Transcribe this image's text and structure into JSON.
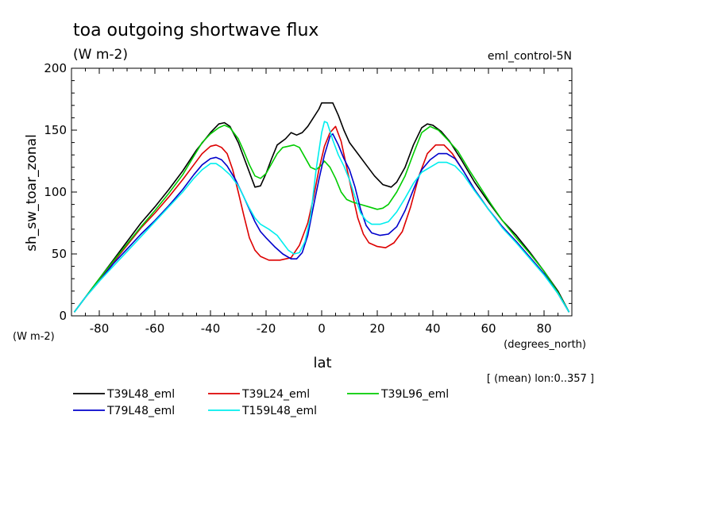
{
  "chart_data": {
    "type": "line",
    "title": "toa outgoing shortwave flux",
    "subtitle": "(W m-2)",
    "experiment_label": "eml_control-5N",
    "ylabel": "sh_sw_toar_zonal",
    "y_unit_label": "(W m-2)",
    "xlabel": "lat",
    "x_unit_label": "(degrees_north)",
    "note": "[ (mean) lon:0..357 ]",
    "xlim": [
      -90,
      90
    ],
    "ylim": [
      0,
      200
    ],
    "x_ticks": [
      -80,
      -60,
      -40,
      -20,
      0,
      20,
      40,
      60,
      80
    ],
    "x_tick_labels": [
      "-80",
      "-60",
      "-40",
      "-20",
      "0",
      "20",
      "40",
      "60",
      "80"
    ],
    "y_ticks": [
      0,
      50,
      100,
      150,
      200
    ],
    "y_tick_labels": [
      "0",
      "50",
      "100",
      "150",
      "200"
    ],
    "grid": false,
    "legend_position": "bottom",
    "series": [
      {
        "name": "T39L48_eml",
        "color": "#000000",
        "points": [
          [
            -89,
            3
          ],
          [
            -85,
            15
          ],
          [
            -80,
            30
          ],
          [
            -75,
            45
          ],
          [
            -70,
            60
          ],
          [
            -65,
            75
          ],
          [
            -60,
            88
          ],
          [
            -55,
            102
          ],
          [
            -50,
            117
          ],
          [
            -45,
            134
          ],
          [
            -40,
            148
          ],
          [
            -37,
            155
          ],
          [
            -35,
            156
          ],
          [
            -33,
            153
          ],
          [
            -30,
            140
          ],
          [
            -27,
            122
          ],
          [
            -24,
            104
          ],
          [
            -22,
            105
          ],
          [
            -20,
            115
          ],
          [
            -18,
            127
          ],
          [
            -16,
            138
          ],
          [
            -13,
            143
          ],
          [
            -11,
            148
          ],
          [
            -9,
            146
          ],
          [
            -7,
            148
          ],
          [
            -5,
            153
          ],
          [
            -3,
            160
          ],
          [
            -1,
            167
          ],
          [
            0,
            172
          ],
          [
            2,
            172
          ],
          [
            4,
            172
          ],
          [
            6,
            162
          ],
          [
            8,
            150
          ],
          [
            10,
            140
          ],
          [
            13,
            131
          ],
          [
            16,
            122
          ],
          [
            19,
            113
          ],
          [
            22,
            106
          ],
          [
            25,
            104
          ],
          [
            27,
            108
          ],
          [
            30,
            120
          ],
          [
            33,
            138
          ],
          [
            36,
            152
          ],
          [
            38,
            155
          ],
          [
            40,
            154
          ],
          [
            43,
            149
          ],
          [
            46,
            141
          ],
          [
            50,
            127
          ],
          [
            55,
            108
          ],
          [
            60,
            92
          ],
          [
            65,
            77
          ],
          [
            70,
            65
          ],
          [
            75,
            51
          ],
          [
            80,
            36
          ],
          [
            85,
            20
          ],
          [
            89,
            3
          ]
        ]
      },
      {
        "name": "T39L24_eml",
        "color": "#dd0000",
        "points": [
          [
            -89,
            3
          ],
          [
            -85,
            15
          ],
          [
            -80,
            29
          ],
          [
            -75,
            43
          ],
          [
            -70,
            57
          ],
          [
            -65,
            71
          ],
          [
            -60,
            83
          ],
          [
            -55,
            96
          ],
          [
            -50,
            110
          ],
          [
            -46,
            122
          ],
          [
            -43,
            131
          ],
          [
            -40,
            137
          ],
          [
            -38,
            138
          ],
          [
            -36,
            136
          ],
          [
            -34,
            131
          ],
          [
            -32,
            118
          ],
          [
            -30,
            100
          ],
          [
            -28,
            81
          ],
          [
            -26,
            63
          ],
          [
            -24,
            53
          ],
          [
            -22,
            48
          ],
          [
            -19,
            45
          ],
          [
            -15,
            45
          ],
          [
            -11,
            47
          ],
          [
            -8,
            57
          ],
          [
            -5,
            75
          ],
          [
            -3,
            95
          ],
          [
            -1,
            118
          ],
          [
            1,
            137
          ],
          [
            3,
            148
          ],
          [
            5,
            153
          ],
          [
            7,
            141
          ],
          [
            9,
            120
          ],
          [
            11,
            99
          ],
          [
            13,
            79
          ],
          [
            15,
            66
          ],
          [
            17,
            59
          ],
          [
            20,
            56
          ],
          [
            23,
            55
          ],
          [
            26,
            59
          ],
          [
            29,
            68
          ],
          [
            32,
            88
          ],
          [
            35,
            113
          ],
          [
            38,
            131
          ],
          [
            41,
            138
          ],
          [
            44,
            138
          ],
          [
            47,
            131
          ],
          [
            51,
            117
          ],
          [
            55,
            102
          ],
          [
            60,
            86
          ],
          [
            65,
            72
          ],
          [
            70,
            60
          ],
          [
            75,
            47
          ],
          [
            80,
            34
          ],
          [
            85,
            18
          ],
          [
            89,
            3
          ]
        ]
      },
      {
        "name": "T39L96_eml",
        "color": "#00cc00",
        "points": [
          [
            -89,
            3
          ],
          [
            -85,
            15
          ],
          [
            -80,
            30
          ],
          [
            -75,
            44
          ],
          [
            -70,
            58
          ],
          [
            -65,
            72
          ],
          [
            -60,
            85
          ],
          [
            -55,
            99
          ],
          [
            -50,
            114
          ],
          [
            -46,
            129
          ],
          [
            -43,
            140
          ],
          [
            -40,
            147
          ],
          [
            -37,
            152
          ],
          [
            -35,
            154
          ],
          [
            -33,
            152
          ],
          [
            -30,
            143
          ],
          [
            -28,
            133
          ],
          [
            -26,
            122
          ],
          [
            -24,
            113
          ],
          [
            -22,
            111
          ],
          [
            -20,
            115
          ],
          [
            -18,
            123
          ],
          [
            -16,
            131
          ],
          [
            -14,
            136
          ],
          [
            -12,
            137
          ],
          [
            -10,
            138
          ],
          [
            -8,
            136
          ],
          [
            -6,
            128
          ],
          [
            -4,
            120
          ],
          [
            -2,
            118
          ],
          [
            0,
            122
          ],
          [
            1,
            125
          ],
          [
            3,
            120
          ],
          [
            5,
            111
          ],
          [
            7,
            100
          ],
          [
            9,
            94
          ],
          [
            11,
            92
          ],
          [
            14,
            90
          ],
          [
            17,
            88
          ],
          [
            20,
            86
          ],
          [
            22,
            87
          ],
          [
            24,
            90
          ],
          [
            27,
            100
          ],
          [
            30,
            113
          ],
          [
            33,
            131
          ],
          [
            36,
            148
          ],
          [
            39,
            153
          ],
          [
            42,
            150
          ],
          [
            45,
            143
          ],
          [
            49,
            133
          ],
          [
            53,
            118
          ],
          [
            57,
            104
          ],
          [
            61,
            90
          ],
          [
            65,
            77
          ],
          [
            70,
            63
          ],
          [
            75,
            50
          ],
          [
            80,
            36
          ],
          [
            85,
            19
          ],
          [
            89,
            3
          ]
        ]
      },
      {
        "name": "T79L48_eml",
        "color": "#0000cc",
        "points": [
          [
            -89,
            3
          ],
          [
            -85,
            15
          ],
          [
            -80,
            28
          ],
          [
            -75,
            42
          ],
          [
            -70,
            54
          ],
          [
            -65,
            66
          ],
          [
            -60,
            77
          ],
          [
            -55,
            89
          ],
          [
            -50,
            102
          ],
          [
            -46,
            114
          ],
          [
            -43,
            122
          ],
          [
            -40,
            127
          ],
          [
            -38,
            128
          ],
          [
            -36,
            126
          ],
          [
            -34,
            121
          ],
          [
            -31,
            110
          ],
          [
            -28,
            96
          ],
          [
            -26,
            86
          ],
          [
            -24,
            76
          ],
          [
            -22,
            68
          ],
          [
            -20,
            63
          ],
          [
            -17,
            56
          ],
          [
            -14,
            50
          ],
          [
            -11,
            46
          ],
          [
            -9,
            46
          ],
          [
            -7,
            51
          ],
          [
            -5,
            65
          ],
          [
            -3,
            88
          ],
          [
            -1,
            110
          ],
          [
            1,
            130
          ],
          [
            3,
            145
          ],
          [
            4,
            147
          ],
          [
            6,
            138
          ],
          [
            8,
            127
          ],
          [
            10,
            118
          ],
          [
            12,
            104
          ],
          [
            14,
            86
          ],
          [
            16,
            73
          ],
          [
            18,
            67
          ],
          [
            21,
            65
          ],
          [
            24,
            66
          ],
          [
            27,
            72
          ],
          [
            30,
            85
          ],
          [
            33,
            102
          ],
          [
            36,
            118
          ],
          [
            39,
            126
          ],
          [
            42,
            131
          ],
          [
            45,
            131
          ],
          [
            48,
            127
          ],
          [
            51,
            117
          ],
          [
            55,
            102
          ],
          [
            60,
            86
          ],
          [
            65,
            72
          ],
          [
            70,
            60
          ],
          [
            75,
            47
          ],
          [
            80,
            34
          ],
          [
            85,
            18
          ],
          [
            89,
            3
          ]
        ]
      },
      {
        "name": "T159L48_eml",
        "color": "#00eeee",
        "points": [
          [
            -89,
            3
          ],
          [
            -85,
            15
          ],
          [
            -80,
            28
          ],
          [
            -75,
            40
          ],
          [
            -70,
            52
          ],
          [
            -65,
            64
          ],
          [
            -60,
            76
          ],
          [
            -55,
            88
          ],
          [
            -50,
            100
          ],
          [
            -46,
            111
          ],
          [
            -43,
            118
          ],
          [
            -40,
            123
          ],
          [
            -38,
            123
          ],
          [
            -36,
            120
          ],
          [
            -33,
            114
          ],
          [
            -30,
            105
          ],
          [
            -28,
            96
          ],
          [
            -26,
            87
          ],
          [
            -24,
            79
          ],
          [
            -22,
            74
          ],
          [
            -19,
            70
          ],
          [
            -16,
            65
          ],
          [
            -14,
            59
          ],
          [
            -12,
            53
          ],
          [
            -10,
            50
          ],
          [
            -8,
            51
          ],
          [
            -6,
            60
          ],
          [
            -4,
            80
          ],
          [
            -2,
            118
          ],
          [
            0,
            148
          ],
          [
            1,
            157
          ],
          [
            2,
            156
          ],
          [
            4,
            142
          ],
          [
            6,
            130
          ],
          [
            8,
            121
          ],
          [
            10,
            110
          ],
          [
            12,
            96
          ],
          [
            14,
            83
          ],
          [
            16,
            77
          ],
          [
            18,
            74
          ],
          [
            21,
            74
          ],
          [
            24,
            76
          ],
          [
            27,
            84
          ],
          [
            30,
            95
          ],
          [
            33,
            107
          ],
          [
            36,
            116
          ],
          [
            39,
            120
          ],
          [
            42,
            124
          ],
          [
            45,
            124
          ],
          [
            48,
            121
          ],
          [
            51,
            114
          ],
          [
            55,
            101
          ],
          [
            60,
            86
          ],
          [
            65,
            71
          ],
          [
            70,
            59
          ],
          [
            75,
            46
          ],
          [
            80,
            33
          ],
          [
            85,
            18
          ],
          [
            89,
            3
          ]
        ]
      }
    ]
  }
}
